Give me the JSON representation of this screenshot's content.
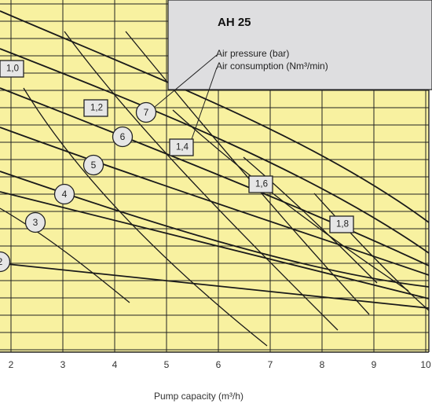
{
  "chart_data": {
    "type": "line",
    "title": "AH 25",
    "legend": [
      "Air pressure (bar)",
      "Air consumption (Nm³/min)"
    ],
    "xlabel": "Pump capacity (m³/h)",
    "ylabel": "",
    "x_ticks": [
      "2",
      "3",
      "4",
      "5",
      "6",
      "7",
      "8",
      "9",
      "10"
    ],
    "xlim": [
      1.8,
      10.0
    ],
    "grid": true,
    "pressure_labels": [
      "2",
      "3",
      "4",
      "5",
      "6",
      "7"
    ],
    "consumption_labels": [
      "1,0",
      "1,2",
      "1,4",
      "1,6",
      "1,8"
    ],
    "colors": {
      "plot_bg": "#f8f1a0",
      "grid": "#222222",
      "legend_bg": "#dedee0",
      "curve": "#1a1a1a",
      "marker_fill": "#e6e6e6"
    }
  }
}
